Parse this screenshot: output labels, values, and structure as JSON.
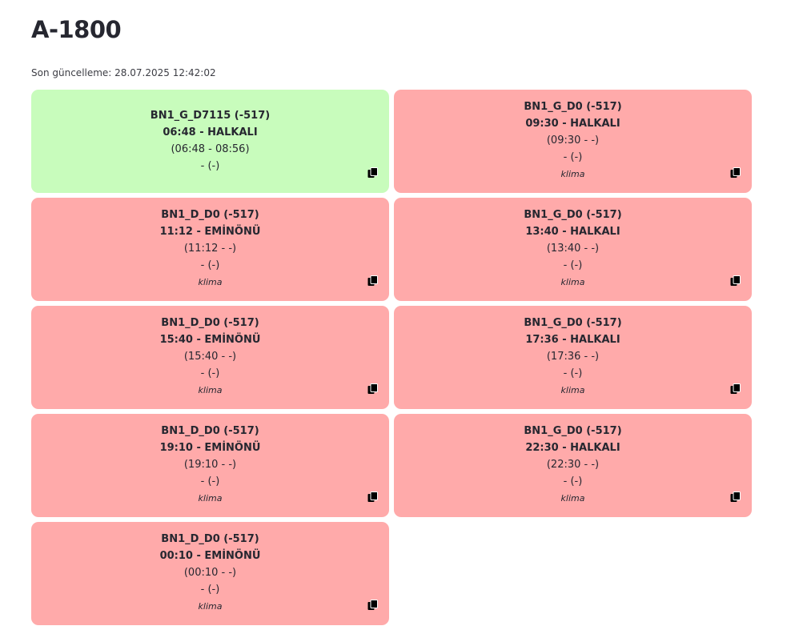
{
  "header": {
    "title": "A-1800",
    "last_updated": "Son güncelleme: 28.07.2025 12:42:02"
  },
  "colors": {
    "active_card": "#c8fcbc",
    "inactive_card": "#ffaaaa"
  },
  "cards": [
    {
      "status": "active",
      "code": "BN1_G_D7115 (-517)",
      "departure": "06:48 - HALKALI",
      "time_range": "(06:48 - 08:56)",
      "extra": "- (-)",
      "note": "",
      "copy_icon": "copy-icon"
    },
    {
      "status": "inactive",
      "code": "BN1_G_D0 (-517)",
      "departure": "09:30 - HALKALI",
      "time_range": "(09:30 - -)",
      "extra": "- (-)",
      "note": "klima",
      "copy_icon": "copy-icon"
    },
    {
      "status": "inactive",
      "code": "BN1_D_D0 (-517)",
      "departure": "11:12 - EMİNÖNÜ",
      "time_range": "(11:12 - -)",
      "extra": "- (-)",
      "note": "klima",
      "copy_icon": "copy-icon"
    },
    {
      "status": "inactive",
      "code": "BN1_G_D0 (-517)",
      "departure": "13:40 - HALKALI",
      "time_range": "(13:40 - -)",
      "extra": "- (-)",
      "note": "klima",
      "copy_icon": "copy-icon"
    },
    {
      "status": "inactive",
      "code": "BN1_D_D0 (-517)",
      "departure": "15:40 - EMİNÖNÜ",
      "time_range": "(15:40 - -)",
      "extra": "- (-)",
      "note": "klima",
      "copy_icon": "copy-icon"
    },
    {
      "status": "inactive",
      "code": "BN1_G_D0 (-517)",
      "departure": "17:36 - HALKALI",
      "time_range": "(17:36 - -)",
      "extra": "- (-)",
      "note": "klima",
      "copy_icon": "copy-icon"
    },
    {
      "status": "inactive",
      "code": "BN1_D_D0 (-517)",
      "departure": "19:10 - EMİNÖNÜ",
      "time_range": "(19:10 - -)",
      "extra": "- (-)",
      "note": "klima",
      "copy_icon": "copy-icon"
    },
    {
      "status": "inactive",
      "code": "BN1_G_D0 (-517)",
      "departure": "22:30 - HALKALI",
      "time_range": "(22:30 - -)",
      "extra": "- (-)",
      "note": "klima",
      "copy_icon": "copy-icon"
    },
    {
      "status": "inactive",
      "code": "BN1_D_D0 (-517)",
      "departure": "00:10 - EMİNÖNÜ",
      "time_range": "(00:10 - -)",
      "extra": "- (-)",
      "note": "klima",
      "copy_icon": "copy-icon"
    }
  ]
}
